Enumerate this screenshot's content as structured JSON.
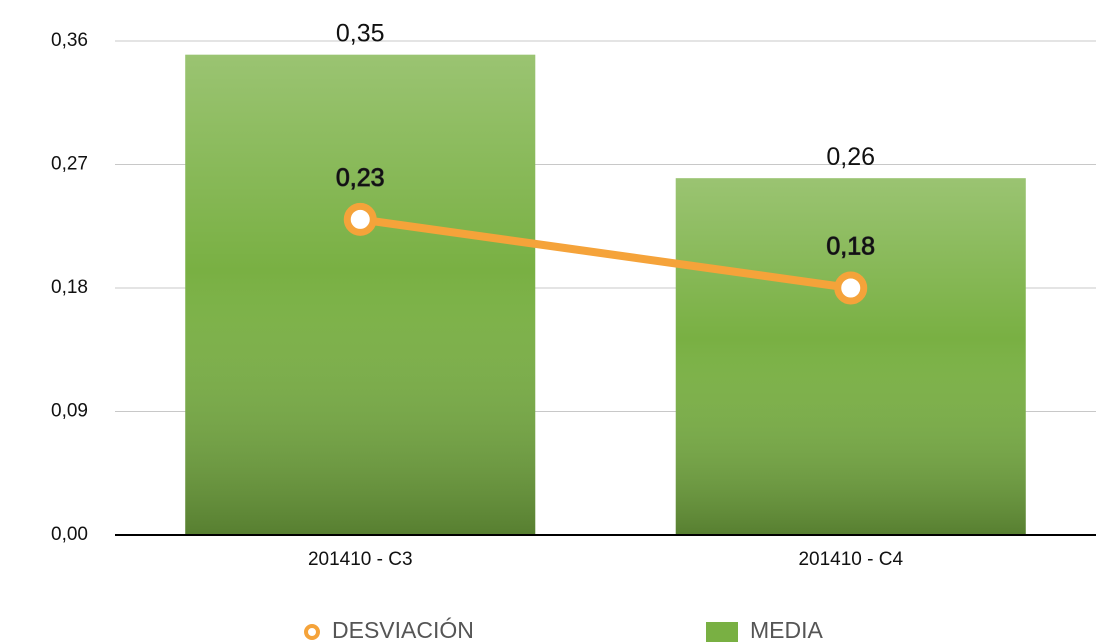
{
  "chart_data": {
    "type": "bar",
    "categories": [
      "201410 - C3",
      "201410 - C4"
    ],
    "series": [
      {
        "name": "DESVIACIÓN",
        "type": "line",
        "color": "#f5a33a",
        "values": [
          0.23,
          0.18
        ],
        "value_labels": [
          "0,23",
          "0,18"
        ]
      },
      {
        "name": "MEDIA",
        "type": "bar",
        "color": "#79b043",
        "values": [
          0.35,
          0.26
        ],
        "value_labels": [
          "0,35",
          "0,26"
        ]
      }
    ],
    "ylim": [
      0,
      0.36
    ],
    "yticks": [
      {
        "value": 0,
        "label": "0,00"
      },
      {
        "value": 0.09,
        "label": "0,09"
      },
      {
        "value": 0.18,
        "label": "0,18"
      },
      {
        "value": 0.27,
        "label": "0,27"
      },
      {
        "value": 0.36,
        "label": "0,36"
      }
    ],
    "grid": true,
    "legend": "bottom"
  }
}
